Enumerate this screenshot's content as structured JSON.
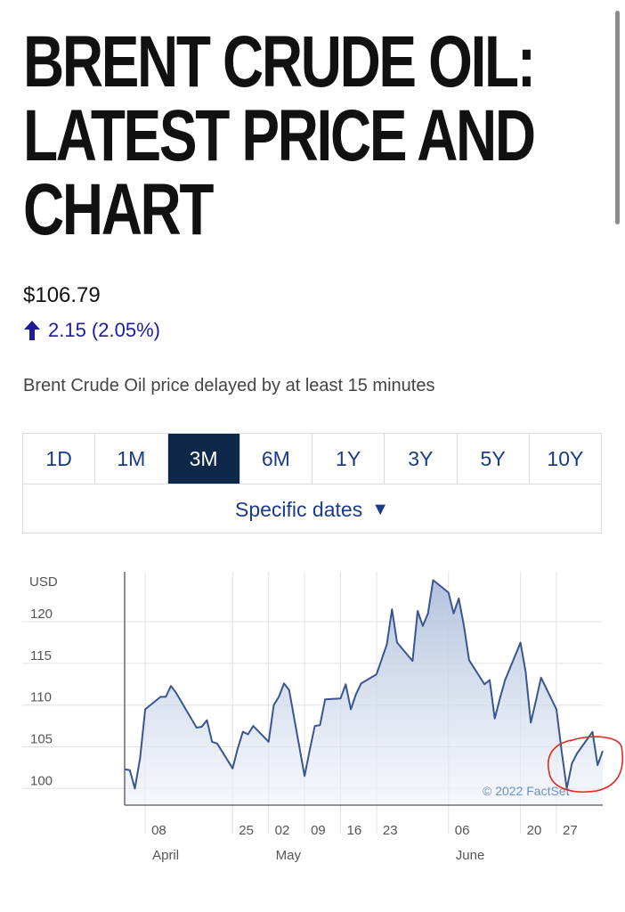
{
  "page": {
    "headline": "BRENT CRUDE OIL: LATEST PRICE AND CHART",
    "price": "$106.79",
    "change": "2.15 (2.05%)",
    "delay_note": "Brent Crude Oil price delayed by at least 15 minutes"
  },
  "range_tabs": {
    "items": [
      "1D",
      "1M",
      "3M",
      "6M",
      "1Y",
      "3Y",
      "5Y",
      "10Y"
    ],
    "selected": "3M",
    "specific_dates": "Specific dates"
  },
  "colors": {
    "tab_active_bg": "#0f2749",
    "link_blue": "#1a3a8a",
    "change_up": "#1c1c9a",
    "line": "#3a5590",
    "annotation_red": "#e0281e"
  },
  "chart_data": {
    "type": "area",
    "unit_label": "USD",
    "y_ticks": [
      100,
      105,
      110,
      115,
      120
    ],
    "ylim": [
      98,
      126
    ],
    "x_tick_labels": [
      {
        "day": "08",
        "month": "April"
      },
      {
        "day": "25",
        "month": ""
      },
      {
        "day": "02",
        "month": "May"
      },
      {
        "day": "09",
        "month": ""
      },
      {
        "day": "16",
        "month": ""
      },
      {
        "day": "23",
        "month": ""
      },
      {
        "day": "06",
        "month": "June"
      },
      {
        "day": "20",
        "month": ""
      },
      {
        "day": "27",
        "month": ""
      }
    ],
    "x": [
      "2022-04-04",
      "2022-04-05",
      "2022-04-06",
      "2022-04-07",
      "2022-04-08",
      "2022-04-11",
      "2022-04-12",
      "2022-04-13",
      "2022-04-14",
      "2022-04-18",
      "2022-04-19",
      "2022-04-20",
      "2022-04-21",
      "2022-04-22",
      "2022-04-25",
      "2022-04-26",
      "2022-04-27",
      "2022-04-28",
      "2022-04-29",
      "2022-05-02",
      "2022-05-03",
      "2022-05-04",
      "2022-05-05",
      "2022-05-06",
      "2022-05-09",
      "2022-05-10",
      "2022-05-11",
      "2022-05-12",
      "2022-05-13",
      "2022-05-16",
      "2022-05-17",
      "2022-05-18",
      "2022-05-19",
      "2022-05-20",
      "2022-05-23",
      "2022-05-24",
      "2022-05-25",
      "2022-05-26",
      "2022-05-27",
      "2022-05-30",
      "2022-05-31",
      "2022-06-01",
      "2022-06-02",
      "2022-06-03",
      "2022-06-06",
      "2022-06-07",
      "2022-06-08",
      "2022-06-09",
      "2022-06-10",
      "2022-06-13",
      "2022-06-14",
      "2022-06-15",
      "2022-06-16",
      "2022-06-17",
      "2022-06-20",
      "2022-06-21",
      "2022-06-22",
      "2022-06-23",
      "2022-06-24",
      "2022-06-27",
      "2022-06-28",
      "2022-06-29",
      "2022-06-30",
      "2022-07-01",
      "2022-07-04",
      "2022-07-05",
      "2022-07-06"
    ],
    "values": [
      102.3,
      102.2,
      100.0,
      103.6,
      109.5,
      111.0,
      111.0,
      112.3,
      111.5,
      107.3,
      107.4,
      108.2,
      105.6,
      105.4,
      102.4,
      104.8,
      106.8,
      106.5,
      107.5,
      105.6,
      110.0,
      111.0,
      112.6,
      111.8,
      101.5,
      104.6,
      107.5,
      107.6,
      110.7,
      110.8,
      112.5,
      109.5,
      111.3,
      112.6,
      113.7,
      115.5,
      117.3,
      121.5,
      117.5,
      115.3,
      121.3,
      119.5,
      121.0,
      125.0,
      123.5,
      121.0,
      122.8,
      119.5,
      115.4,
      112.5,
      113.0,
      108.4,
      110.8,
      113.0,
      117.5,
      114.0,
      107.9,
      110.5,
      113.3,
      109.5,
      104.5,
      100.0,
      103.0,
      104.2,
      106.8,
      102.8,
      104.5
    ],
    "annotations": [
      "© 2022 FactSet"
    ]
  }
}
